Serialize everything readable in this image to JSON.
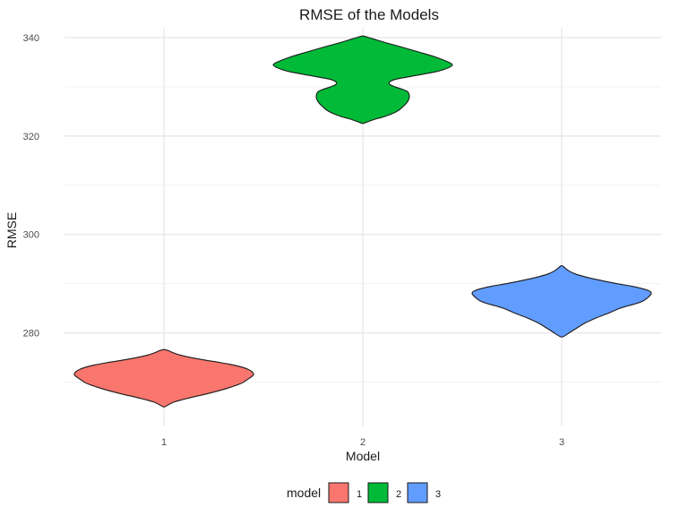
{
  "chart_data": {
    "type": "violin",
    "title": "RMSE of the Models",
    "xlabel": "Model",
    "ylabel": "RMSE",
    "categories": [
      "1",
      "2",
      "3"
    ],
    "ylim": [
      261,
      342
    ],
    "yticks": [
      280,
      300,
      320,
      340
    ],
    "grid": true,
    "legend": {
      "title": "model",
      "position": "bottom",
      "entries": [
        "1",
        "2",
        "3"
      ]
    },
    "series": [
      {
        "category": "1",
        "color": "#F8766D",
        "profile": [
          [
            265.0,
            0.01
          ],
          [
            265.5,
            0.06
          ],
          [
            266.0,
            0.12
          ],
          [
            266.5,
            0.22
          ],
          [
            267.0,
            0.33
          ],
          [
            267.5,
            0.45
          ],
          [
            268.0,
            0.56
          ],
          [
            268.5,
            0.66
          ],
          [
            269.0,
            0.75
          ],
          [
            269.5,
            0.83
          ],
          [
            270.0,
            0.89
          ],
          [
            270.5,
            0.93
          ],
          [
            271.0,
            0.97
          ],
          [
            271.5,
            1.0
          ],
          [
            272.0,
            0.99
          ],
          [
            272.5,
            0.95
          ],
          [
            273.0,
            0.88
          ],
          [
            273.5,
            0.77
          ],
          [
            274.0,
            0.62
          ],
          [
            274.5,
            0.45
          ],
          [
            275.0,
            0.3
          ],
          [
            275.5,
            0.18
          ],
          [
            276.0,
            0.1
          ],
          [
            276.4,
            0.05
          ],
          [
            276.6,
            0.01
          ]
        ]
      },
      {
        "category": "2",
        "color": "#00BA38",
        "profile": [
          [
            322.6,
            0.01
          ],
          [
            323.0,
            0.07
          ],
          [
            323.5,
            0.15
          ],
          [
            324.0,
            0.25
          ],
          [
            325.0,
            0.38
          ],
          [
            326.0,
            0.45
          ],
          [
            327.0,
            0.5
          ],
          [
            328.0,
            0.52
          ],
          [
            329.0,
            0.5
          ],
          [
            329.5,
            0.44
          ],
          [
            330.0,
            0.36
          ],
          [
            330.5,
            0.3
          ],
          [
            331.0,
            0.3
          ],
          [
            331.5,
            0.36
          ],
          [
            332.0,
            0.5
          ],
          [
            333.0,
            0.8
          ],
          [
            333.5,
            0.9
          ],
          [
            334.0,
            0.97
          ],
          [
            334.5,
            1.0
          ],
          [
            335.0,
            0.96
          ],
          [
            336.0,
            0.82
          ],
          [
            337.0,
            0.64
          ],
          [
            338.0,
            0.45
          ],
          [
            339.0,
            0.25
          ],
          [
            339.5,
            0.16
          ],
          [
            340.0,
            0.07
          ],
          [
            340.3,
            0.01
          ]
        ]
      },
      {
        "category": "3",
        "color": "#619CFF",
        "profile": [
          [
            279.2,
            0.01
          ],
          [
            279.6,
            0.05
          ],
          [
            280.2,
            0.1
          ],
          [
            281.0,
            0.17
          ],
          [
            282.0,
            0.26
          ],
          [
            283.0,
            0.38
          ],
          [
            284.0,
            0.52
          ],
          [
            285.0,
            0.65
          ],
          [
            285.5,
            0.74
          ],
          [
            286.0,
            0.84
          ],
          [
            286.5,
            0.91
          ],
          [
            287.0,
            0.95
          ],
          [
            287.5,
            0.98
          ],
          [
            288.0,
            1.0
          ],
          [
            288.5,
            0.98
          ],
          [
            289.0,
            0.9
          ],
          [
            289.5,
            0.78
          ],
          [
            290.0,
            0.62
          ],
          [
            290.5,
            0.48
          ],
          [
            291.0,
            0.35
          ],
          [
            291.5,
            0.24
          ],
          [
            292.0,
            0.15
          ],
          [
            292.5,
            0.09
          ],
          [
            293.0,
            0.05
          ],
          [
            293.6,
            0.01
          ]
        ]
      }
    ]
  }
}
